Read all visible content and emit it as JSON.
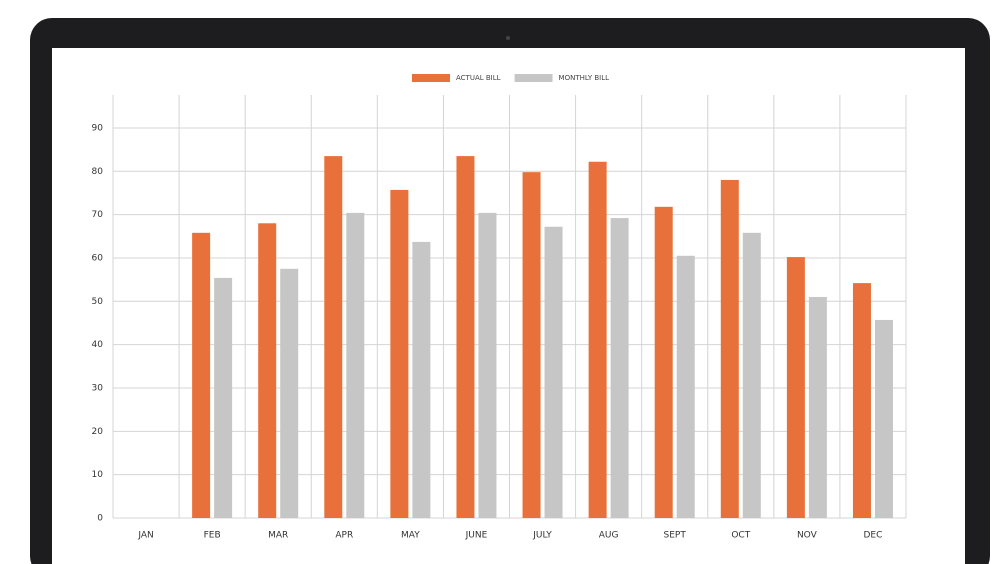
{
  "chart_data": {
    "type": "bar",
    "categories": [
      "JAN",
      "FEB",
      "MAR",
      "APR",
      "MAY",
      "JUNE",
      "JULY",
      "AUG",
      "SEPT",
      "OCT",
      "NOV",
      "DEC"
    ],
    "series": [
      {
        "name": "ACTUAL BILL",
        "color": "#e8703a",
        "values": [
          null,
          65.8,
          68,
          83.5,
          75.7,
          83.5,
          79.8,
          82.2,
          71.8,
          78,
          60.2,
          54.2
        ]
      },
      {
        "name": "MONTHLY BILL",
        "color": "#c6c6c6",
        "values": [
          null,
          55.4,
          57.5,
          70.4,
          63.7,
          70.4,
          67.2,
          69.2,
          60.5,
          65.8,
          51,
          45.7
        ]
      }
    ],
    "ylim": [
      0,
      97.6
    ],
    "yticks": [
      0,
      10,
      20,
      30,
      40,
      50,
      60,
      70,
      80,
      90
    ],
    "grid": true,
    "legend": "top"
  }
}
